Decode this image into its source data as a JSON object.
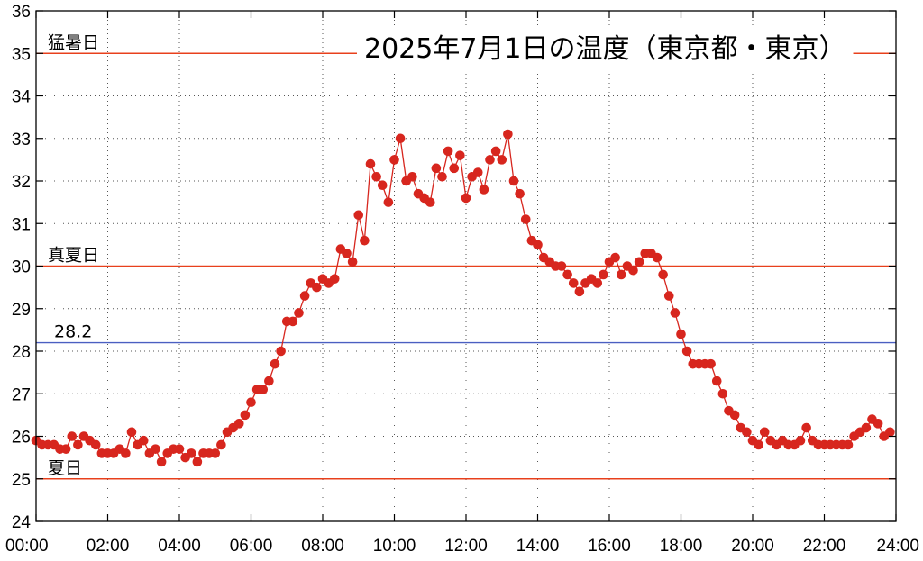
{
  "chart_data": {
    "type": "line",
    "title": "2025年7月1日の温度（東京都・東京）",
    "xlabel": "",
    "ylabel": "",
    "xlim": [
      "00:00",
      "24:00"
    ],
    "ylim": [
      24,
      36
    ],
    "x_ticks": [
      "00:00",
      "02:00",
      "04:00",
      "06:00",
      "08:00",
      "10:00",
      "12:00",
      "14:00",
      "16:00",
      "18:00",
      "20:00",
      "22:00",
      "24:00"
    ],
    "y_ticks": [
      24,
      25,
      26,
      27,
      28,
      29,
      30,
      31,
      32,
      33,
      34,
      35,
      36
    ],
    "grid": true,
    "reference_lines": [
      {
        "value": 35,
        "label": "猛暑日",
        "color": "#e8401c"
      },
      {
        "value": 30,
        "label": "真夏日",
        "color": "#e8401c"
      },
      {
        "value": 28.2,
        "label": "28.2",
        "color": "#4a5fc1"
      },
      {
        "value": 25,
        "label": "夏日",
        "color": "#e8401c"
      }
    ],
    "series": [
      {
        "color": "#d7261e",
        "interval_minutes": 10,
        "x_start": "00:00",
        "values": [
          25.9,
          25.8,
          25.8,
          25.8,
          25.7,
          25.7,
          26.0,
          25.8,
          26.0,
          25.9,
          25.8,
          25.6,
          25.6,
          25.6,
          25.7,
          25.6,
          26.1,
          25.8,
          25.9,
          25.6,
          25.7,
          25.4,
          25.6,
          25.7,
          25.7,
          25.5,
          25.6,
          25.4,
          25.6,
          25.6,
          25.6,
          25.8,
          26.1,
          26.2,
          26.3,
          26.5,
          26.8,
          27.1,
          27.1,
          27.3,
          27.7,
          28.0,
          28.7,
          28.7,
          28.9,
          29.3,
          29.6,
          29.5,
          29.7,
          29.6,
          29.7,
          30.4,
          30.3,
          30.1,
          31.2,
          30.6,
          32.4,
          32.1,
          31.9,
          31.5,
          32.5,
          33.0,
          32.0,
          32.1,
          31.7,
          31.6,
          31.5,
          32.3,
          32.1,
          32.7,
          32.3,
          32.6,
          31.6,
          32.1,
          32.2,
          31.8,
          32.5,
          32.7,
          32.5,
          33.1,
          32.0,
          31.7,
          31.1,
          30.6,
          30.5,
          30.2,
          30.1,
          30.0,
          30.0,
          29.8,
          29.6,
          29.4,
          29.6,
          29.7,
          29.6,
          29.8,
          30.1,
          30.2,
          29.8,
          30.0,
          29.9,
          30.1,
          30.3,
          30.3,
          30.2,
          29.8,
          29.3,
          28.9,
          28.4,
          28.0,
          27.7,
          27.7,
          27.7,
          27.7,
          27.3,
          27.0,
          26.6,
          26.5,
          26.2,
          26.1,
          25.9,
          25.8,
          26.1,
          25.9,
          25.8,
          25.9,
          25.8,
          25.8,
          25.9,
          26.2,
          25.9,
          25.8,
          25.8,
          25.8,
          25.8,
          25.8,
          25.8,
          26.0,
          26.1,
          26.2,
          26.4,
          26.3,
          26.0,
          26.1
        ]
      }
    ]
  }
}
